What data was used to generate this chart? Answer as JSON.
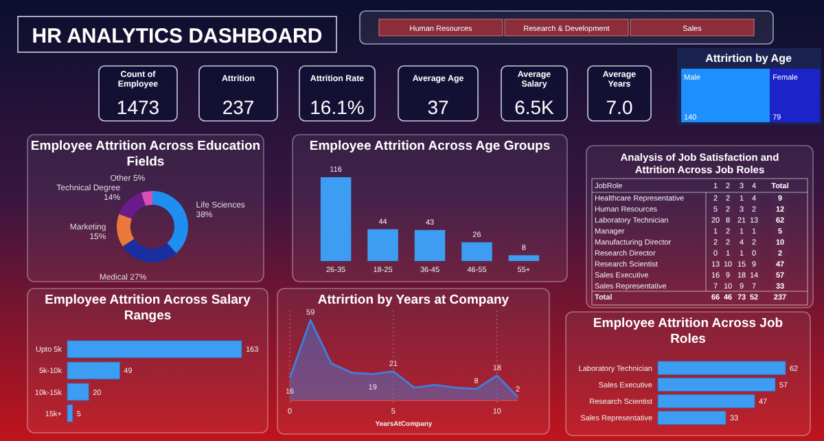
{
  "chart_data": [
    {
      "type": "other",
      "title": "HR ANALYTICS DASHBOARD",
      "categories": [
        "Human Resources",
        "Research & Development",
        "Sales"
      ]
    },
    {
      "type": "other",
      "categories": [
        "Count of Employee",
        "Attrition",
        "Attrition Rate",
        "Average Age",
        "Average Salary",
        "Average Years"
      ],
      "value_labels": [
        "1473",
        "237",
        "16.1%",
        "37",
        "6.5K",
        "7.0"
      ]
    },
    {
      "type": "other",
      "title": "Attrirtion by Age",
      "categories": [
        "Male",
        "Female"
      ],
      "values": [
        140,
        79
      ],
      "colors": [
        "#1e8fff",
        "#1c23c8"
      ],
      "data_labels": true
    },
    {
      "type": "donut",
      "title": "Employee Attrition Across Education Fields",
      "categories": [
        "Life Sciences",
        "Medical",
        "Marketing",
        "Technical Degree",
        "Other"
      ],
      "values": [
        38,
        27,
        15,
        14,
        5
      ],
      "colors": [
        "#1f8ef1",
        "#1a2ea0",
        "#e8793a",
        "#6a1b8a",
        "#d84fb8"
      ],
      "value_labels": [
        "38%",
        "27%",
        "15%",
        "14%",
        "5%"
      ]
    },
    {
      "type": "bar",
      "title": "Employee Attrition Across Age Groups",
      "categories": [
        "26-35",
        "18-25",
        "36-45",
        "46-55",
        "55+"
      ],
      "values": [
        116,
        44,
        43,
        26,
        8
      ],
      "color": "#3d9df3",
      "data_labels": true
    },
    {
      "type": "heatmap",
      "title": "Analysis of Job Satisfaction and Attrition Across Job Roles",
      "ylabel": "JobRole",
      "categories": [
        "1",
        "2",
        "3",
        "4",
        "Total"
      ],
      "y_categories": [
        "Healthcare Representative",
        "Human Resources",
        "Laboratory Technician",
        "Manager",
        "Manufacturing Director",
        "Research Director",
        "Research Scientist",
        "Sales Executive",
        "Sales Representative",
        "Total"
      ],
      "data_labels": true,
      "cells": [
        [
          2,
          2,
          1,
          4,
          9
        ],
        [
          5,
          2,
          3,
          2,
          12
        ],
        [
          20,
          8,
          21,
          13,
          62
        ],
        [
          1,
          2,
          1,
          1,
          5
        ],
        [
          2,
          2,
          4,
          2,
          10
        ],
        [
          0,
          1,
          1,
          0,
          2
        ],
        [
          13,
          10,
          15,
          9,
          47
        ],
        [
          16,
          9,
          18,
          14,
          57
        ],
        [
          7,
          10,
          9,
          7,
          33
        ],
        [
          66,
          46,
          73,
          52,
          237
        ]
      ]
    },
    {
      "type": "bar",
      "orientation": "horizontal",
      "title": "Employee Attrition Across Salary Ranges",
      "categories": [
        "Upto 5k",
        "5k-10k",
        "10k-15k",
        "15k+"
      ],
      "values": [
        163,
        49,
        20,
        5
      ],
      "color": "#3d9df3",
      "data_labels": true
    },
    {
      "type": "area",
      "title": "Attrirtion by Years at Company",
      "xlabel": "YearsAtCompany",
      "x": [
        0,
        1,
        2,
        3,
        4,
        5,
        6,
        7,
        8,
        9,
        10,
        11
      ],
      "values": [
        16,
        59,
        27,
        20,
        19,
        21,
        9,
        11,
        9,
        8,
        18,
        2
      ],
      "value_labels": [
        "16",
        "59",
        null,
        null,
        "19",
        "21",
        null,
        null,
        null,
        "8",
        "18",
        "2"
      ],
      "color": "#3f7fe0",
      "xlim": [
        0,
        11
      ],
      "xticks": [
        0,
        5,
        10
      ],
      "grid": "x"
    },
    {
      "type": "bar",
      "orientation": "horizontal",
      "title": "Employee Attrition Across Job Roles",
      "categories": [
        "Laboratory Technician",
        "Sales Executive",
        "Research Scientist",
        "Sales Representative"
      ],
      "values": [
        62,
        57,
        47,
        33
      ],
      "color": "#3d9df3",
      "data_labels": true
    }
  ]
}
